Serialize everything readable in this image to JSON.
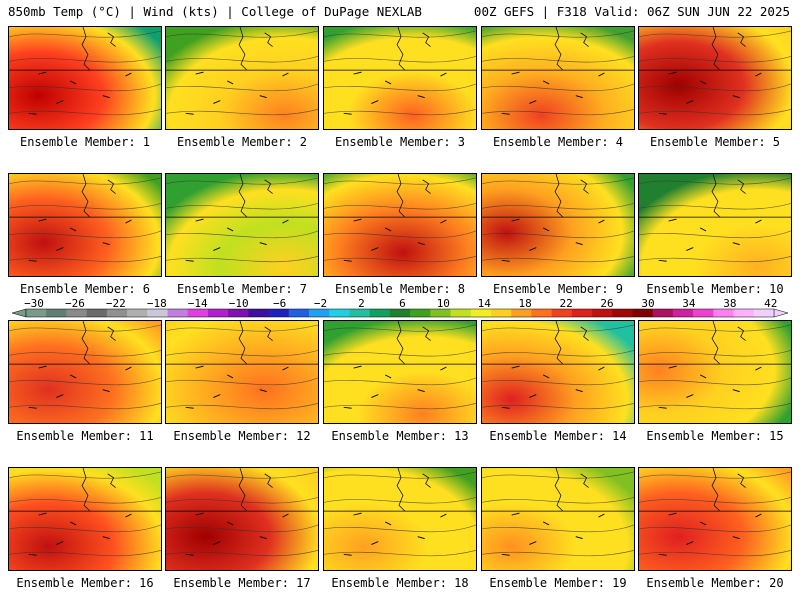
{
  "header": {
    "left": "850mb Temp (°C) | Wind (kts) | College of DuPage NEXLAB",
    "right": "00Z GEFS | F318 Valid: 06Z SUN JUN 22 2025"
  },
  "members": [
    {
      "label": "Ensemble Member: 1"
    },
    {
      "label": "Ensemble Member: 2"
    },
    {
      "label": "Ensemble Member: 3"
    },
    {
      "label": "Ensemble Member: 4"
    },
    {
      "label": "Ensemble Member: 5"
    },
    {
      "label": "Ensemble Member: 6"
    },
    {
      "label": "Ensemble Member: 7"
    },
    {
      "label": "Ensemble Member: 8"
    },
    {
      "label": "Ensemble Member: 9"
    },
    {
      "label": "Ensemble Member: 10"
    },
    {
      "label": "Ensemble Member: 11"
    },
    {
      "label": "Ensemble Member: 12"
    },
    {
      "label": "Ensemble Member: 13"
    },
    {
      "label": "Ensemble Member: 14"
    },
    {
      "label": "Ensemble Member: 15"
    },
    {
      "label": "Ensemble Member: 16"
    },
    {
      "label": "Ensemble Member: 17"
    },
    {
      "label": "Ensemble Member: 18"
    },
    {
      "label": "Ensemble Member: 19"
    },
    {
      "label": "Ensemble Member: 20"
    }
  ],
  "colorbar": {
    "labels": [
      "−30",
      "−26",
      "−22",
      "−18",
      "−14",
      "−10",
      "−6",
      "−2",
      "2",
      "6",
      "10",
      "14",
      "18",
      "22",
      "26",
      "30",
      "34",
      "38",
      "42"
    ],
    "colors": [
      "#7a9a8a",
      "#5f7f74",
      "#8a8a8a",
      "#6b6b6b",
      "#909090",
      "#b0b0b0",
      "#c8c8d8",
      "#c080e0",
      "#e040e0",
      "#b020d0",
      "#8010b0",
      "#4010a0",
      "#2020c0",
      "#2060e0",
      "#20a0f0",
      "#20d0e0",
      "#20c0a0",
      "#10a060",
      "#208030",
      "#40a020",
      "#80c020",
      "#c0e020",
      "#f0f020",
      "#ffd020",
      "#ffa020",
      "#ff7020",
      "#f04020",
      "#e02020",
      "#c01010",
      "#a00808",
      "#800000",
      "#b01060",
      "#d020a0",
      "#f040d0",
      "#ff80f0",
      "#ffb0ff",
      "#f0d0ff"
    ]
  }
}
